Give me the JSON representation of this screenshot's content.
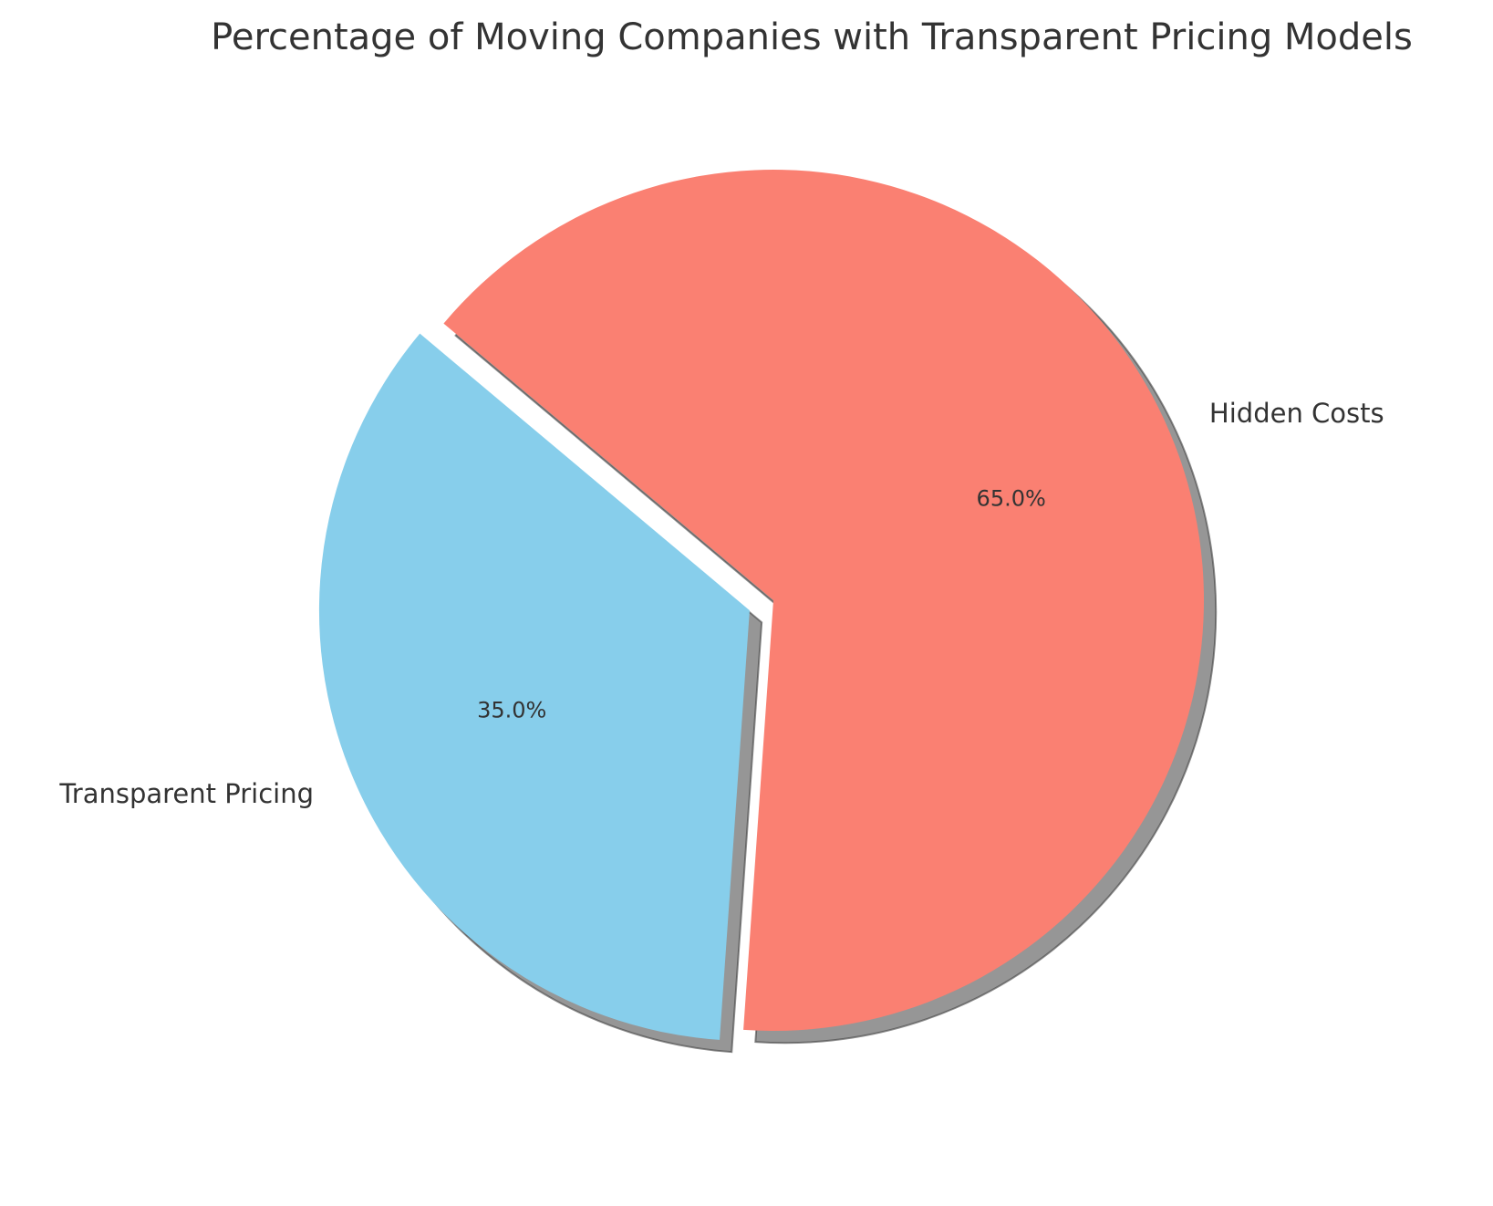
{
  "chart_data": {
    "type": "pie",
    "title": "Percentage of Moving Companies with Transparent Pricing Models",
    "slices": [
      {
        "label": "Transparent Pricing",
        "value": 35.0,
        "display": "35.0%",
        "color": "#87CEEB",
        "exploded": true
      },
      {
        "label": "Hidden Costs",
        "value": 65.0,
        "display": "65.0%",
        "color": "#FA8072",
        "exploded": false
      }
    ],
    "shadow": true,
    "shadow_color": "#404040"
  }
}
